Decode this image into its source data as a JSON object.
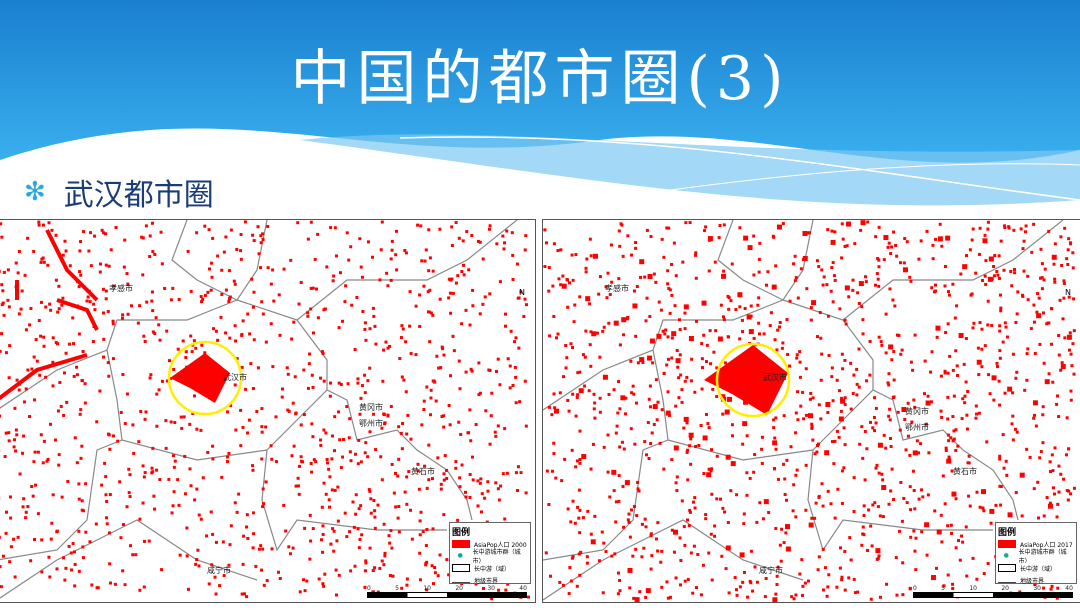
{
  "slide": {
    "title": "中国的都市圈(3)",
    "subtitle": "武汉都市圈",
    "bullet_icon": "asterisk-icon",
    "colors": {
      "banner": "#1e8fd8",
      "urban": "#ff0000",
      "highlight_circle": "#ffee00",
      "subtitle": "#1a3d7a"
    }
  },
  "maps": [
    {
      "north": "N",
      "cities": [
        "孝感市",
        "武汉市",
        "黄冈市",
        "鄂州市",
        "黄石市",
        "咸宁市"
      ],
      "legend": {
        "title": "图例",
        "items": [
          "AsiaPop人口 2000",
          "长中游城市群（城市）",
          "长中游（域）",
          "地级市界"
        ]
      },
      "scale": [
        "0",
        "5",
        "10",
        "20",
        "30",
        "40"
      ]
    },
    {
      "north": "N",
      "cities": [
        "孝感市",
        "武汉市",
        "黄冈市",
        "鄂州市",
        "黄石市",
        "咸宁市"
      ],
      "legend": {
        "title": "图例",
        "items": [
          "AsiaPop人口 2017",
          "长中游城市群（城市）",
          "长中游（域）",
          "地级市界"
        ]
      },
      "scale": [
        "0",
        "5",
        "10",
        "20",
        "30",
        "40"
      ]
    }
  ]
}
